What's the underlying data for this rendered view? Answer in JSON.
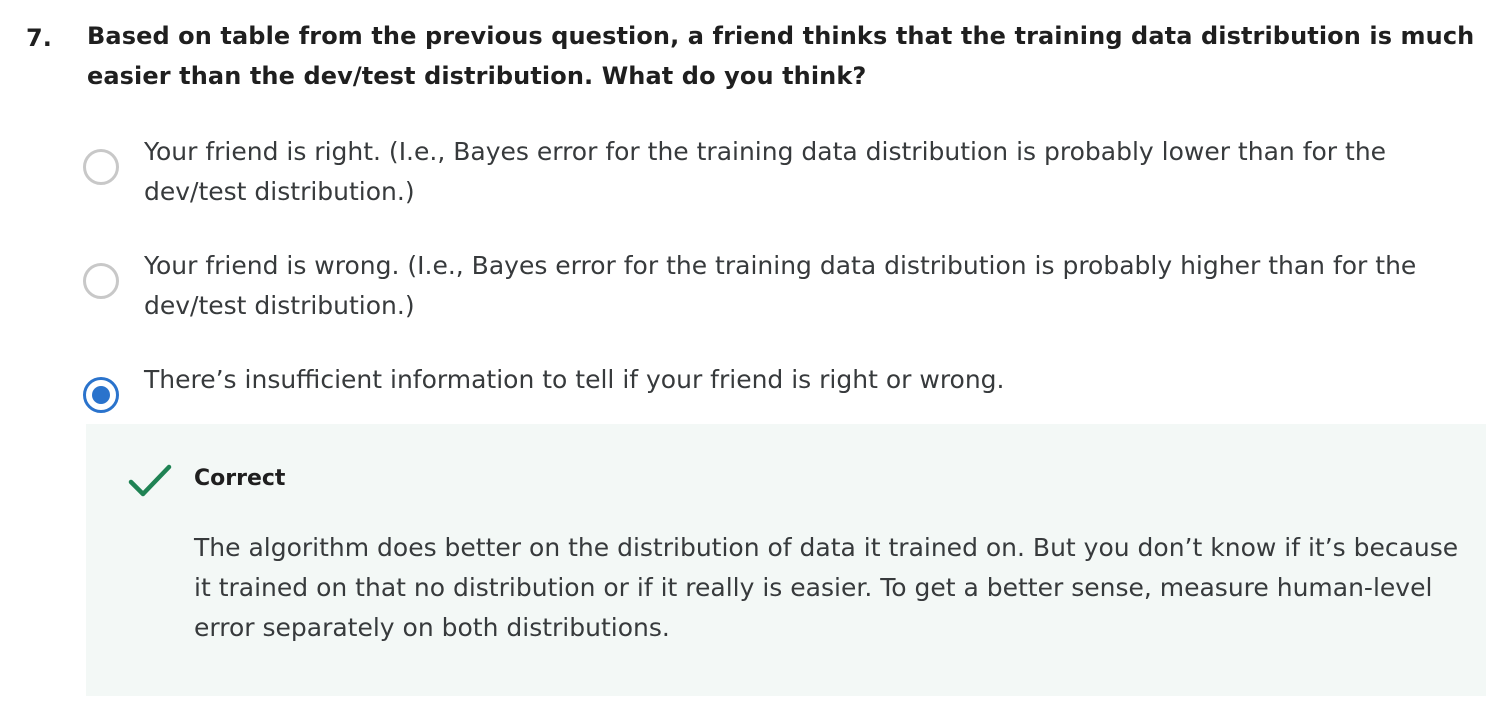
{
  "question": {
    "number": "7.",
    "text": "Based on table from the previous question, a friend thinks that the training data distribution is much easier than the dev/test distribution. What do you think?"
  },
  "options": [
    {
      "label": "Your friend is right. (I.e., Bayes error for the training data distribution is probably lower than for the dev/test distribution.)",
      "selected": false
    },
    {
      "label": "Your friend is wrong. (I.e., Bayes error for the training data distribution is probably higher than for the dev/test distribution.)",
      "selected": false
    },
    {
      "label": "There’s insufficient information to tell if your friend is right or wrong.",
      "selected": true
    }
  ],
  "feedback": {
    "status": "Correct",
    "icon": "checkmark-icon",
    "explanation": "The algorithm does better on the distribution of data it trained on. But you don’t know if it’s because it trained on that no distribution or if it really is easier. To get a better sense, measure human-level error separately on both distributions."
  },
  "colors": {
    "accent_blue": "#2a73cc",
    "correct_green": "#1f8354",
    "feedback_bg": "#f3f8f6"
  }
}
